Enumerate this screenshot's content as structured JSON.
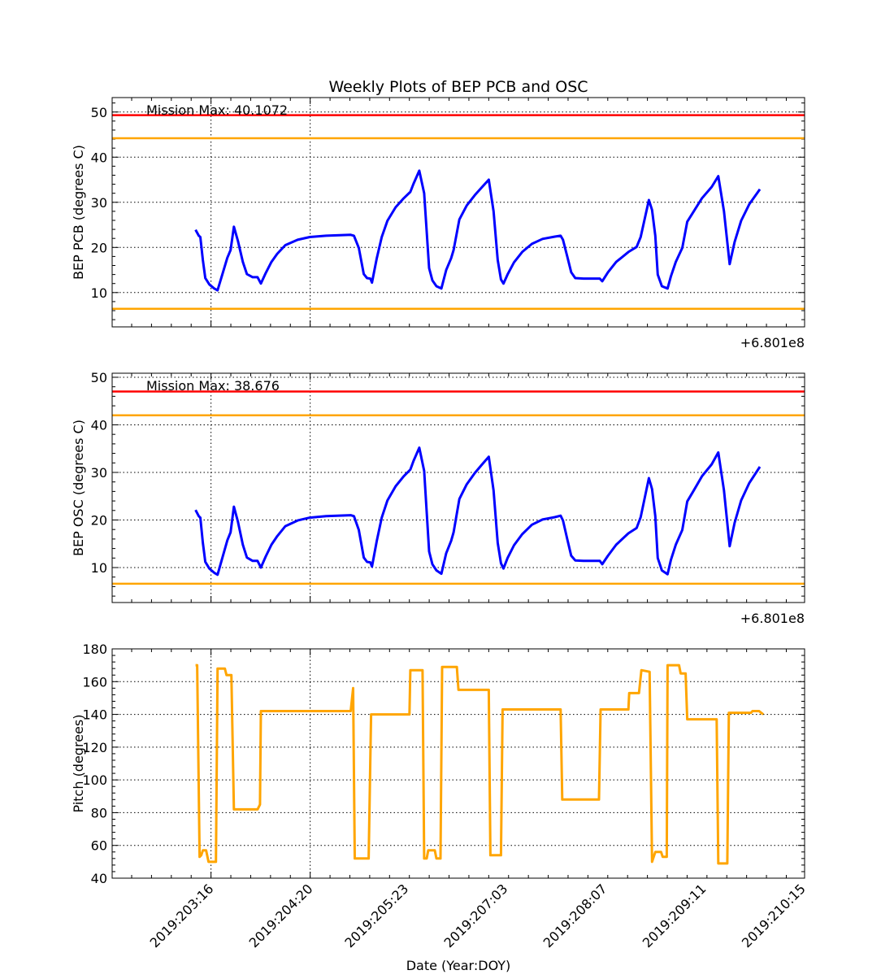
{
  "chart_data": [
    {
      "type": "line",
      "title": "Weekly Plots of BEP PCB and OSC",
      "ylabel": "BEP PCB (degrees C)",
      "xlabel": "",
      "offset_label": "+6.801e8",
      "annotation": "Mission Max: 40.1072",
      "ylim": [
        2.4,
        53.2
      ],
      "yticks": [
        10,
        20,
        30,
        40,
        50
      ],
      "grid": true,
      "hlines": [
        {
          "value": 49.3,
          "color": "#ff0000"
        },
        {
          "value": 44.2,
          "color": "#ffa500"
        },
        {
          "value": 6.4,
          "color": "#ffa500"
        }
      ],
      "series": [
        {
          "name": "BEP PCB",
          "color": "#0000ff",
          "x": [
            203.485,
            203.523,
            203.542,
            203.571,
            203.6,
            203.648,
            203.705,
            203.744,
            203.801,
            203.859,
            203.897,
            203.936,
            203.984,
            204.041,
            204.089,
            204.157,
            204.214,
            204.253,
            204.31,
            204.378,
            204.445,
            204.541,
            204.685,
            204.829,
            205.021,
            205.309,
            205.347,
            205.405,
            205.463,
            205.501,
            205.539,
            205.559,
            205.616,
            205.674,
            205.741,
            205.837,
            205.933,
            206.01,
            206.048,
            206.115,
            206.173,
            206.231,
            206.269,
            206.317,
            206.375,
            206.432,
            206.49,
            206.519,
            206.586,
            206.673,
            206.769,
            206.855,
            206.932,
            206.989,
            207.037,
            207.076,
            207.105,
            207.153,
            207.229,
            207.325,
            207.44,
            207.565,
            207.709,
            207.777,
            207.805,
            207.853,
            207.901,
            207.949,
            208.045,
            208.237,
            208.266,
            208.334,
            208.43,
            208.574,
            208.67,
            208.718,
            208.814,
            208.852,
            208.89,
            208.919,
            208.967,
            209.034,
            209.073,
            209.131,
            209.207,
            209.265,
            209.342,
            209.438,
            209.553,
            209.63,
            209.697,
            209.764,
            209.822,
            209.899,
            209.995,
            210.12
          ],
          "y": [
            23.9,
            22.6,
            22.3,
            17.2,
            13.2,
            11.8,
            10.9,
            10.5,
            14.1,
            17.7,
            19.4,
            24.6,
            21.4,
            16.8,
            14.1,
            13.4,
            13.4,
            12.0,
            14.3,
            16.8,
            18.6,
            20.5,
            21.7,
            22.3,
            22.6,
            22.8,
            22.6,
            19.9,
            14.1,
            13.2,
            13.1,
            12.2,
            17.6,
            22.3,
            25.9,
            28.9,
            30.9,
            32.3,
            34.1,
            37.0,
            32.0,
            15.4,
            12.7,
            11.4,
            10.9,
            15.0,
            17.6,
            19.4,
            26.2,
            29.3,
            31.6,
            33.4,
            35.0,
            28.0,
            17.2,
            12.9,
            12.0,
            14.0,
            16.7,
            19.0,
            20.8,
            21.9,
            22.4,
            22.6,
            21.7,
            18.1,
            14.5,
            13.2,
            13.1,
            13.1,
            12.5,
            14.5,
            16.8,
            19.0,
            20.1,
            22.3,
            30.5,
            28.3,
            22.6,
            14.0,
            11.4,
            10.9,
            13.6,
            16.8,
            19.9,
            25.7,
            28.0,
            30.9,
            33.4,
            35.8,
            28.0,
            16.3,
            21.2,
            25.9,
            29.6,
            32.9
          ]
        }
      ]
    },
    {
      "type": "line",
      "title": "",
      "ylabel": "BEP OSC (degrees C)",
      "xlabel": "",
      "offset_label": "+6.801e8",
      "annotation": "Mission Max: 38.676",
      "ylim": [
        2.65,
        50.85
      ],
      "yticks": [
        10,
        20,
        30,
        40,
        50
      ],
      "grid": true,
      "hlines": [
        {
          "value": 47.0,
          "color": "#ff0000"
        },
        {
          "value": 42.0,
          "color": "#ffa500"
        },
        {
          "value": 6.6,
          "color": "#ffa500"
        }
      ],
      "series": [
        {
          "name": "BEP OSC",
          "color": "#0000ff",
          "x": [
            203.485,
            203.523,
            203.542,
            203.571,
            203.6,
            203.648,
            203.705,
            203.744,
            203.801,
            203.859,
            203.897,
            203.936,
            203.984,
            204.041,
            204.089,
            204.157,
            204.214,
            204.253,
            204.31,
            204.378,
            204.445,
            204.541,
            204.685,
            204.829,
            205.021,
            205.309,
            205.347,
            205.405,
            205.463,
            205.501,
            205.539,
            205.559,
            205.616,
            205.674,
            205.741,
            205.837,
            205.933,
            206.01,
            206.048,
            206.115,
            206.173,
            206.231,
            206.269,
            206.317,
            206.375,
            206.432,
            206.49,
            206.519,
            206.586,
            206.673,
            206.769,
            206.855,
            206.932,
            206.989,
            207.037,
            207.076,
            207.105,
            207.153,
            207.229,
            207.325,
            207.44,
            207.565,
            207.709,
            207.777,
            207.805,
            207.853,
            207.901,
            207.949,
            208.045,
            208.237,
            208.266,
            208.334,
            208.43,
            208.574,
            208.67,
            208.718,
            208.814,
            208.852,
            208.89,
            208.919,
            208.967,
            209.034,
            209.073,
            209.131,
            209.207,
            209.265,
            209.342,
            209.438,
            209.553,
            209.63,
            209.697,
            209.764,
            209.822,
            209.899,
            209.995,
            210.12
          ],
          "y": [
            22.1,
            20.8,
            20.5,
            15.2,
            11.2,
            9.8,
            8.9,
            8.5,
            12.1,
            15.7,
            17.4,
            22.8,
            19.6,
            14.8,
            12.1,
            11.4,
            11.4,
            10.0,
            12.3,
            14.8,
            16.6,
            18.7,
            19.9,
            20.5,
            20.8,
            21.0,
            20.8,
            17.9,
            12.1,
            11.2,
            11.1,
            10.2,
            15.6,
            20.5,
            24.1,
            27.1,
            29.2,
            30.6,
            32.4,
            35.2,
            30.3,
            13.4,
            10.7,
            9.4,
            8.7,
            13.0,
            15.6,
            17.4,
            24.4,
            27.5,
            29.9,
            31.7,
            33.3,
            26.2,
            15.2,
            10.9,
            9.8,
            12.0,
            14.7,
            17.0,
            19.0,
            20.1,
            20.6,
            20.9,
            19.9,
            16.1,
            12.5,
            11.5,
            11.4,
            11.4,
            10.7,
            12.5,
            14.8,
            17.2,
            18.3,
            20.6,
            28.8,
            26.5,
            20.8,
            12.0,
            9.4,
            8.6,
            11.6,
            14.8,
            17.9,
            23.9,
            26.2,
            29.2,
            31.7,
            34.2,
            26.2,
            14.5,
            19.4,
            24.1,
            27.8,
            31.2
          ]
        }
      ]
    },
    {
      "type": "line",
      "title": "",
      "ylabel": "Pitch (degrees)",
      "xlabel": "Date (Year:DOY)",
      "ylim": [
        40,
        180
      ],
      "yticks": [
        40,
        60,
        80,
        100,
        120,
        140,
        160,
        180
      ],
      "grid": true,
      "xtick_labels": [
        "2019:203:16",
        "2019:204:20",
        "2019:205:23",
        "2019:207:03",
        "2019:208:07",
        "2019:209:11",
        "2019:210:15"
      ],
      "series": [
        {
          "name": "Pitch",
          "color": "#ffa500",
          "x": [
            203.485,
            203.504,
            203.533,
            203.552,
            203.571,
            203.609,
            203.638,
            203.725,
            203.744,
            203.83,
            203.849,
            203.907,
            203.936,
            204.214,
            204.243,
            204.253,
            205.309,
            205.338,
            205.357,
            205.52,
            205.549,
            206.0,
            206.01,
            206.154,
            206.173,
            206.202,
            206.221,
            206.298,
            206.317,
            206.365,
            206.384,
            206.557,
            206.576,
            206.932,
            206.951,
            207.076,
            207.095,
            207.777,
            207.796,
            208.228,
            208.247,
            208.574,
            208.583,
            208.698,
            208.727,
            208.823,
            208.852,
            208.89,
            208.958,
            208.977,
            209.025,
            209.034,
            209.169,
            209.188,
            209.246,
            209.265,
            209.611,
            209.63,
            209.736,
            209.755,
            210.014,
            210.033,
            210.11,
            210.159
          ],
          "y": [
            170,
            170,
            53,
            54,
            57,
            57,
            50,
            50,
            168,
            168,
            164,
            164,
            82,
            82,
            85,
            142,
            142,
            156,
            52,
            52,
            140,
            140,
            167,
            167,
            52,
            52,
            57,
            57,
            52,
            52,
            169,
            169,
            155,
            155,
            54,
            54,
            143,
            143,
            88,
            88,
            143,
            143,
            153,
            153,
            167,
            166,
            50,
            56,
            56,
            53,
            53,
            170,
            170,
            165,
            165,
            137,
            137,
            49,
            49,
            141,
            141,
            142,
            142,
            140
          ]
        }
      ]
    }
  ],
  "xaxis": {
    "xlim": [
      202.505,
      210.645
    ],
    "ticks": [
      203.667,
      204.833,
      205.958,
      207.125,
      208.292,
      209.458,
      210.625
    ]
  }
}
